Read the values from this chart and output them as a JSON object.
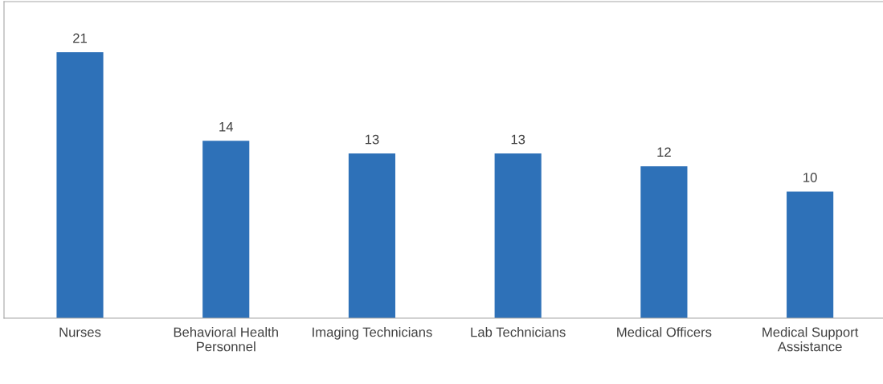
{
  "chart_data": {
    "type": "bar",
    "categories": [
      "Nurses",
      "Behavioral Health\nPersonnel",
      "Imaging Technicians",
      "Lab Technicians",
      "Medical Officers",
      "Medical Support\nAssistance"
    ],
    "values": [
      21,
      14,
      13,
      13,
      12,
      10
    ],
    "color": "#2e71b8",
    "data_labels": true,
    "legend": false
  }
}
